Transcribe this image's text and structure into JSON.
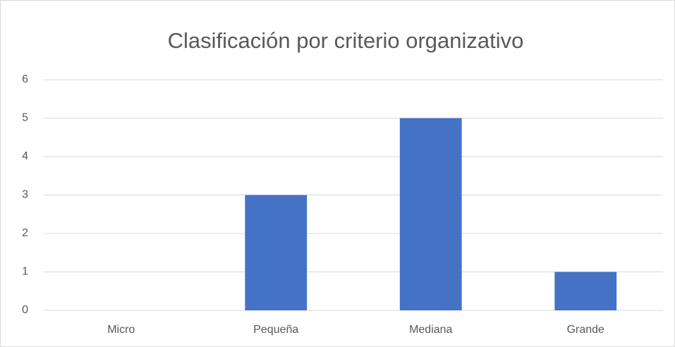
{
  "chart_data": {
    "type": "bar",
    "title": "Clasificación por criterio organizativo",
    "categories": [
      "Micro",
      "Pequeña",
      "Mediana",
      "Grande"
    ],
    "values": [
      0,
      3,
      5,
      1
    ],
    "color": "#4472c4",
    "ylim": [
      0,
      6
    ],
    "yticks": [
      0,
      1,
      2,
      3,
      4,
      5,
      6
    ],
    "grid": true
  }
}
